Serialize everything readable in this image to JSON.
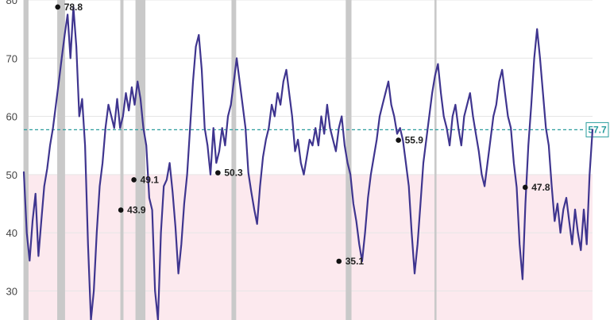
{
  "chart_data": {
    "type": "line",
    "title": "",
    "xlabel": "",
    "ylabel": "",
    "ylim": [
      25,
      80
    ],
    "y_ticks": [
      30,
      40,
      50,
      60,
      70,
      80
    ],
    "grid": true,
    "colors": {
      "line": "#3f358f",
      "recession_band": "#c9c9c9",
      "below_50_fill": "#fce9ee",
      "reference_line": "#2a9d9d",
      "marker": "#111111"
    },
    "recession_periods": [
      [
        0,
        9
      ],
      [
        64,
        79
      ],
      [
        185,
        191
      ],
      [
        214,
        233
      ],
      [
        398,
        407
      ],
      [
        617,
        628
      ],
      [
        787,
        791
      ]
    ],
    "reference_line": {
      "value": 57.7,
      "label": "57.7"
    },
    "annotations": [
      {
        "x": 65,
        "y": 78.8,
        "label": "78.8"
      },
      {
        "x": 186,
        "y": 43.9,
        "label": "43.9"
      },
      {
        "x": 211,
        "y": 49.1,
        "label": "49.1"
      },
      {
        "x": 372,
        "y": 50.3,
        "label": "50.3"
      },
      {
        "x": 604,
        "y": 35.1,
        "label": "35.1"
      },
      {
        "x": 718,
        "y": 55.9,
        "label": "55.9"
      },
      {
        "x": 961,
        "y": 47.8,
        "label": "47.8"
      }
    ],
    "series": [
      {
        "x_range": [
          0,
          1090
        ],
        "values": [
          50.4,
          40,
          35.2,
          42,
          46.7,
          36,
          42,
          48,
          51,
          55,
          58,
          62,
          66,
          70,
          74,
          77.5,
          70,
          78.8,
          72,
          60,
          63,
          55,
          38,
          25,
          30,
          40,
          48,
          52,
          58,
          62,
          60,
          58,
          63,
          58,
          60,
          64,
          61,
          65,
          62,
          66,
          63,
          58,
          55,
          46,
          43.9,
          30,
          25,
          40,
          48,
          49.1,
          52,
          47,
          41,
          33,
          38,
          45,
          50,
          58,
          66,
          72,
          74,
          68,
          58,
          55,
          50,
          58,
          52,
          54,
          58,
          55,
          60,
          62,
          66,
          70,
          66,
          62,
          58,
          50.3,
          47,
          44,
          41.5,
          48,
          53,
          56,
          58,
          62,
          60,
          64,
          62,
          66,
          68,
          64,
          60,
          54,
          56,
          52,
          50,
          53,
          56,
          55,
          58,
          55,
          60,
          57,
          62,
          58,
          56,
          54,
          58,
          60,
          55,
          52,
          50,
          45,
          42,
          38,
          35.1,
          40,
          46,
          50,
          53,
          56,
          60,
          62,
          64,
          66,
          62,
          60,
          57,
          58,
          55.9,
          52,
          48,
          40,
          33,
          38,
          45,
          52,
          56,
          60,
          64,
          67,
          69,
          64,
          60,
          58,
          55,
          60,
          62,
          58,
          55,
          60,
          62,
          64,
          60,
          57,
          54,
          50,
          48,
          52,
          56,
          60,
          62,
          66,
          68,
          64,
          60,
          58,
          52,
          47.8,
          38,
          32,
          45,
          55,
          62,
          70,
          75,
          70,
          64,
          58,
          55,
          48,
          42,
          45,
          40,
          44,
          46,
          42,
          38,
          44,
          40,
          37,
          44,
          38,
          50,
          57.7
        ]
      }
    ]
  }
}
